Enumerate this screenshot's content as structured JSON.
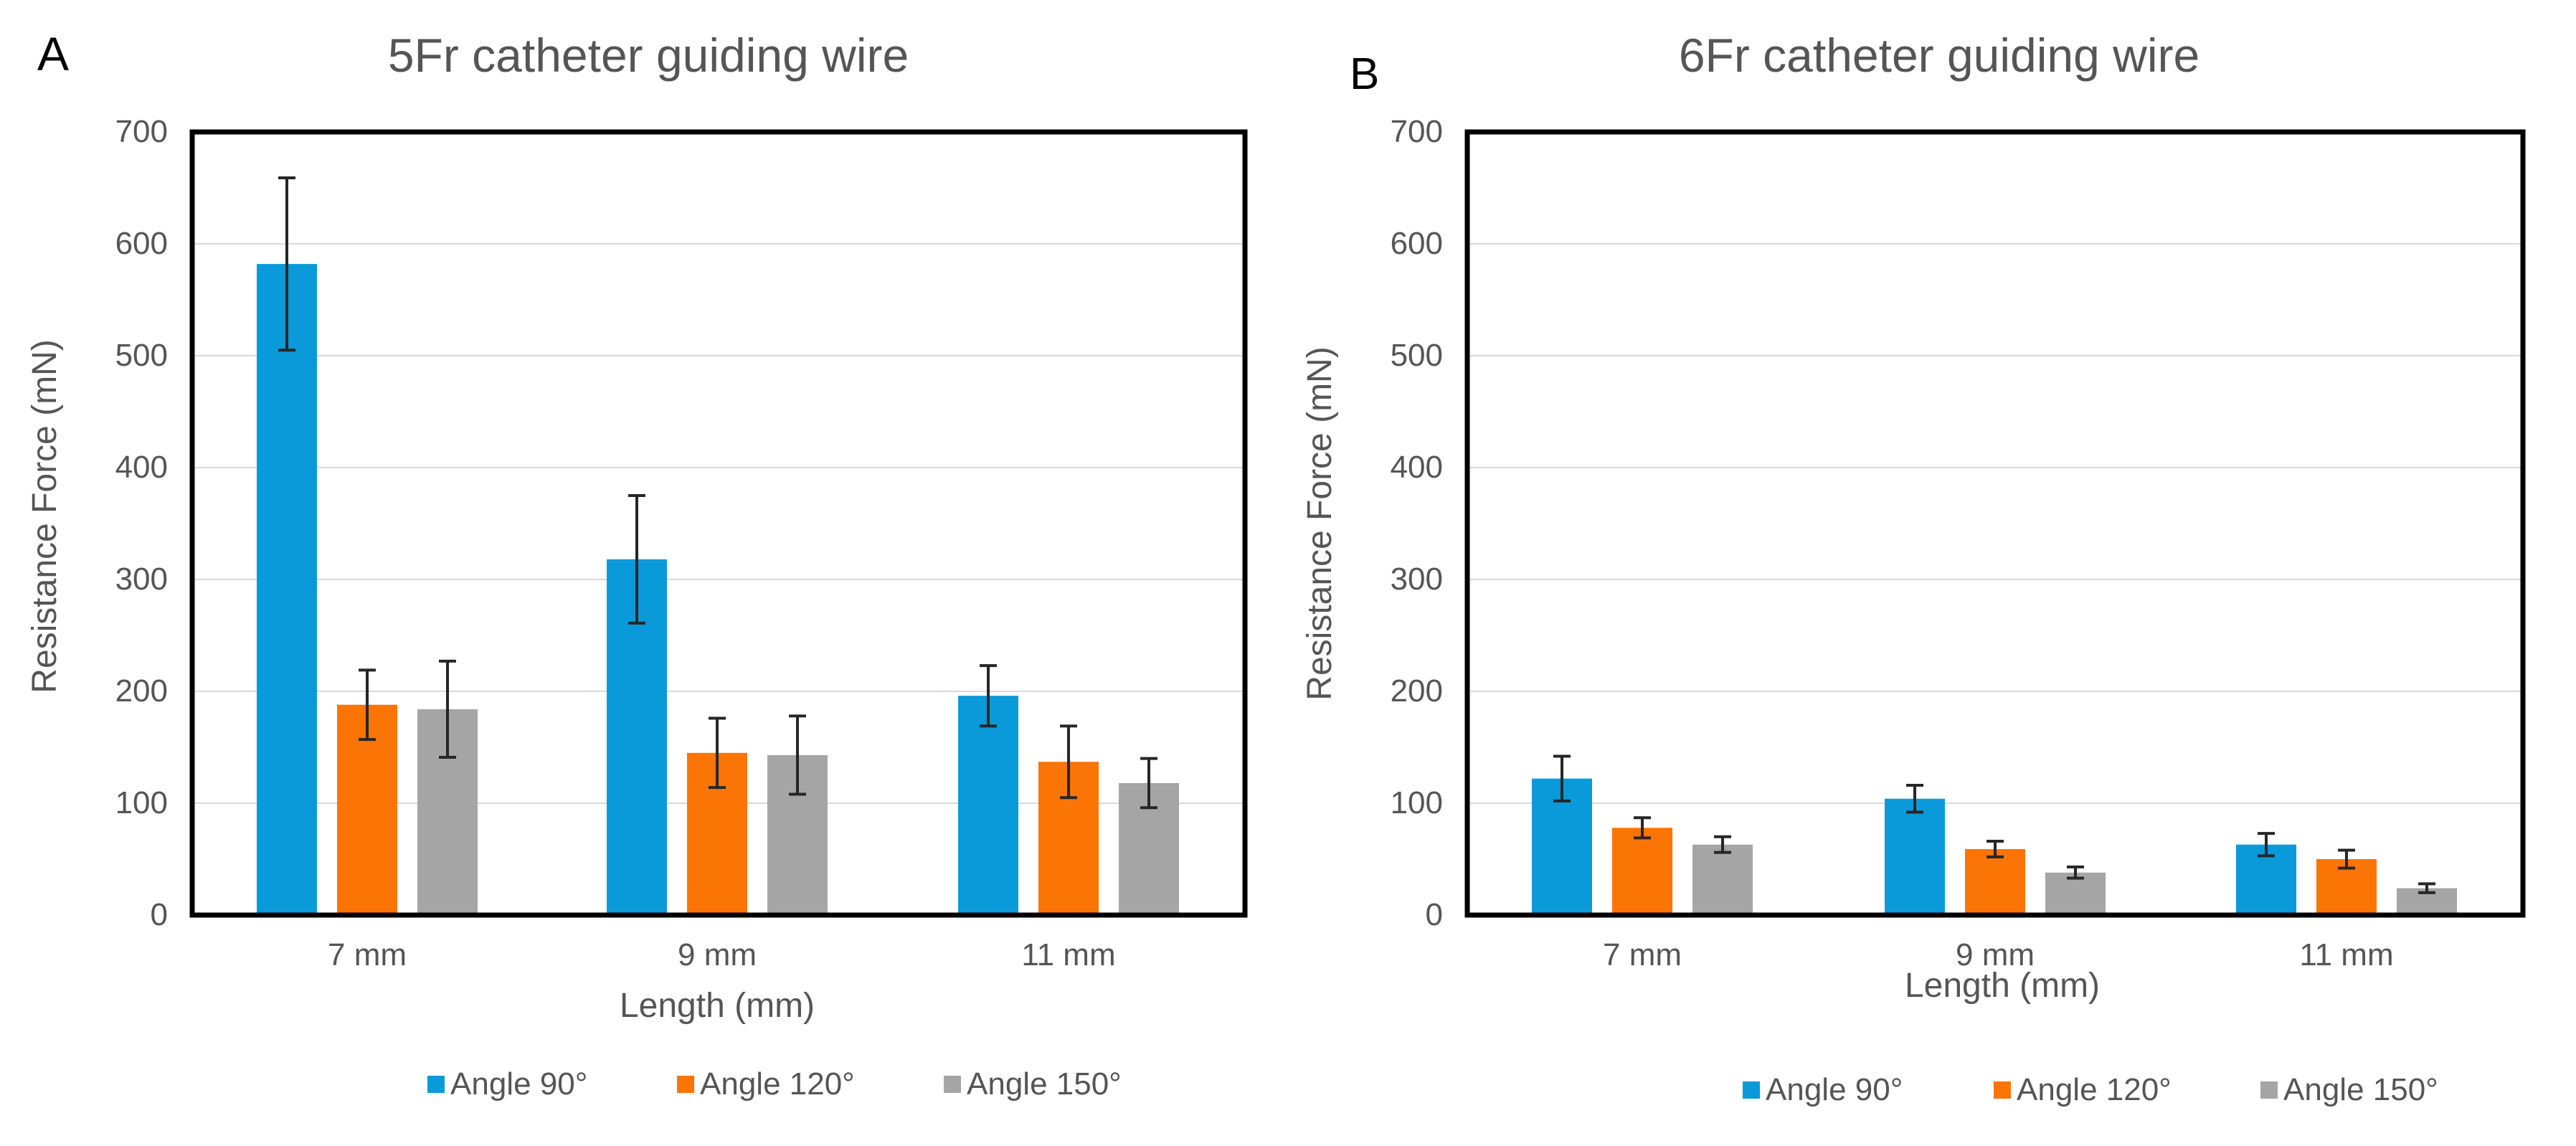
{
  "chart_data": [
    {
      "panel_label": "A",
      "type": "bar",
      "title": "5Fr catheter guiding wire",
      "xlabel": "Length (mm)",
      "ylabel": "Resistance Force (mN)",
      "ylim": [
        0,
        700
      ],
      "yticks": [
        0,
        100,
        200,
        300,
        400,
        500,
        600,
        700
      ],
      "grid": true,
      "legend_position": "bottom",
      "categories": [
        "7 mm",
        "9 mm",
        "11 mm"
      ],
      "series": [
        {
          "name": "Angle 90°",
          "color": "#0a9ad9",
          "values": [
            582,
            318,
            196
          ],
          "errors": [
            77,
            57,
            27
          ]
        },
        {
          "name": "Angle 120°",
          "color": "#fb7406",
          "values": [
            188,
            145,
            137
          ],
          "errors": [
            31,
            31,
            32
          ]
        },
        {
          "name": "Angle 150°",
          "color": "#a5a5a5",
          "values": [
            184,
            143,
            118
          ],
          "errors": [
            43,
            35,
            22
          ]
        }
      ]
    },
    {
      "panel_label": "B",
      "type": "bar",
      "title": "6Fr catheter guiding wire",
      "xlabel": "Length (mm)",
      "ylabel": "Resistance Force (mN)",
      "ylim": [
        0,
        700
      ],
      "yticks": [
        0,
        100,
        200,
        300,
        400,
        500,
        600,
        700
      ],
      "grid": true,
      "legend_position": "bottom",
      "categories": [
        "7 mm",
        "9 mm",
        "11 mm"
      ],
      "series": [
        {
          "name": "Angle 90°",
          "color": "#0a9ad9",
          "values": [
            122,
            104,
            63
          ],
          "errors": [
            20,
            12,
            10
          ]
        },
        {
          "name": "Angle 120°",
          "color": "#fb7406",
          "values": [
            78,
            59,
            50
          ],
          "errors": [
            9,
            7,
            8
          ]
        },
        {
          "name": "Angle 150°",
          "color": "#a5a5a5",
          "values": [
            63,
            38,
            24
          ],
          "errors": [
            7,
            5,
            4
          ]
        }
      ]
    }
  ]
}
